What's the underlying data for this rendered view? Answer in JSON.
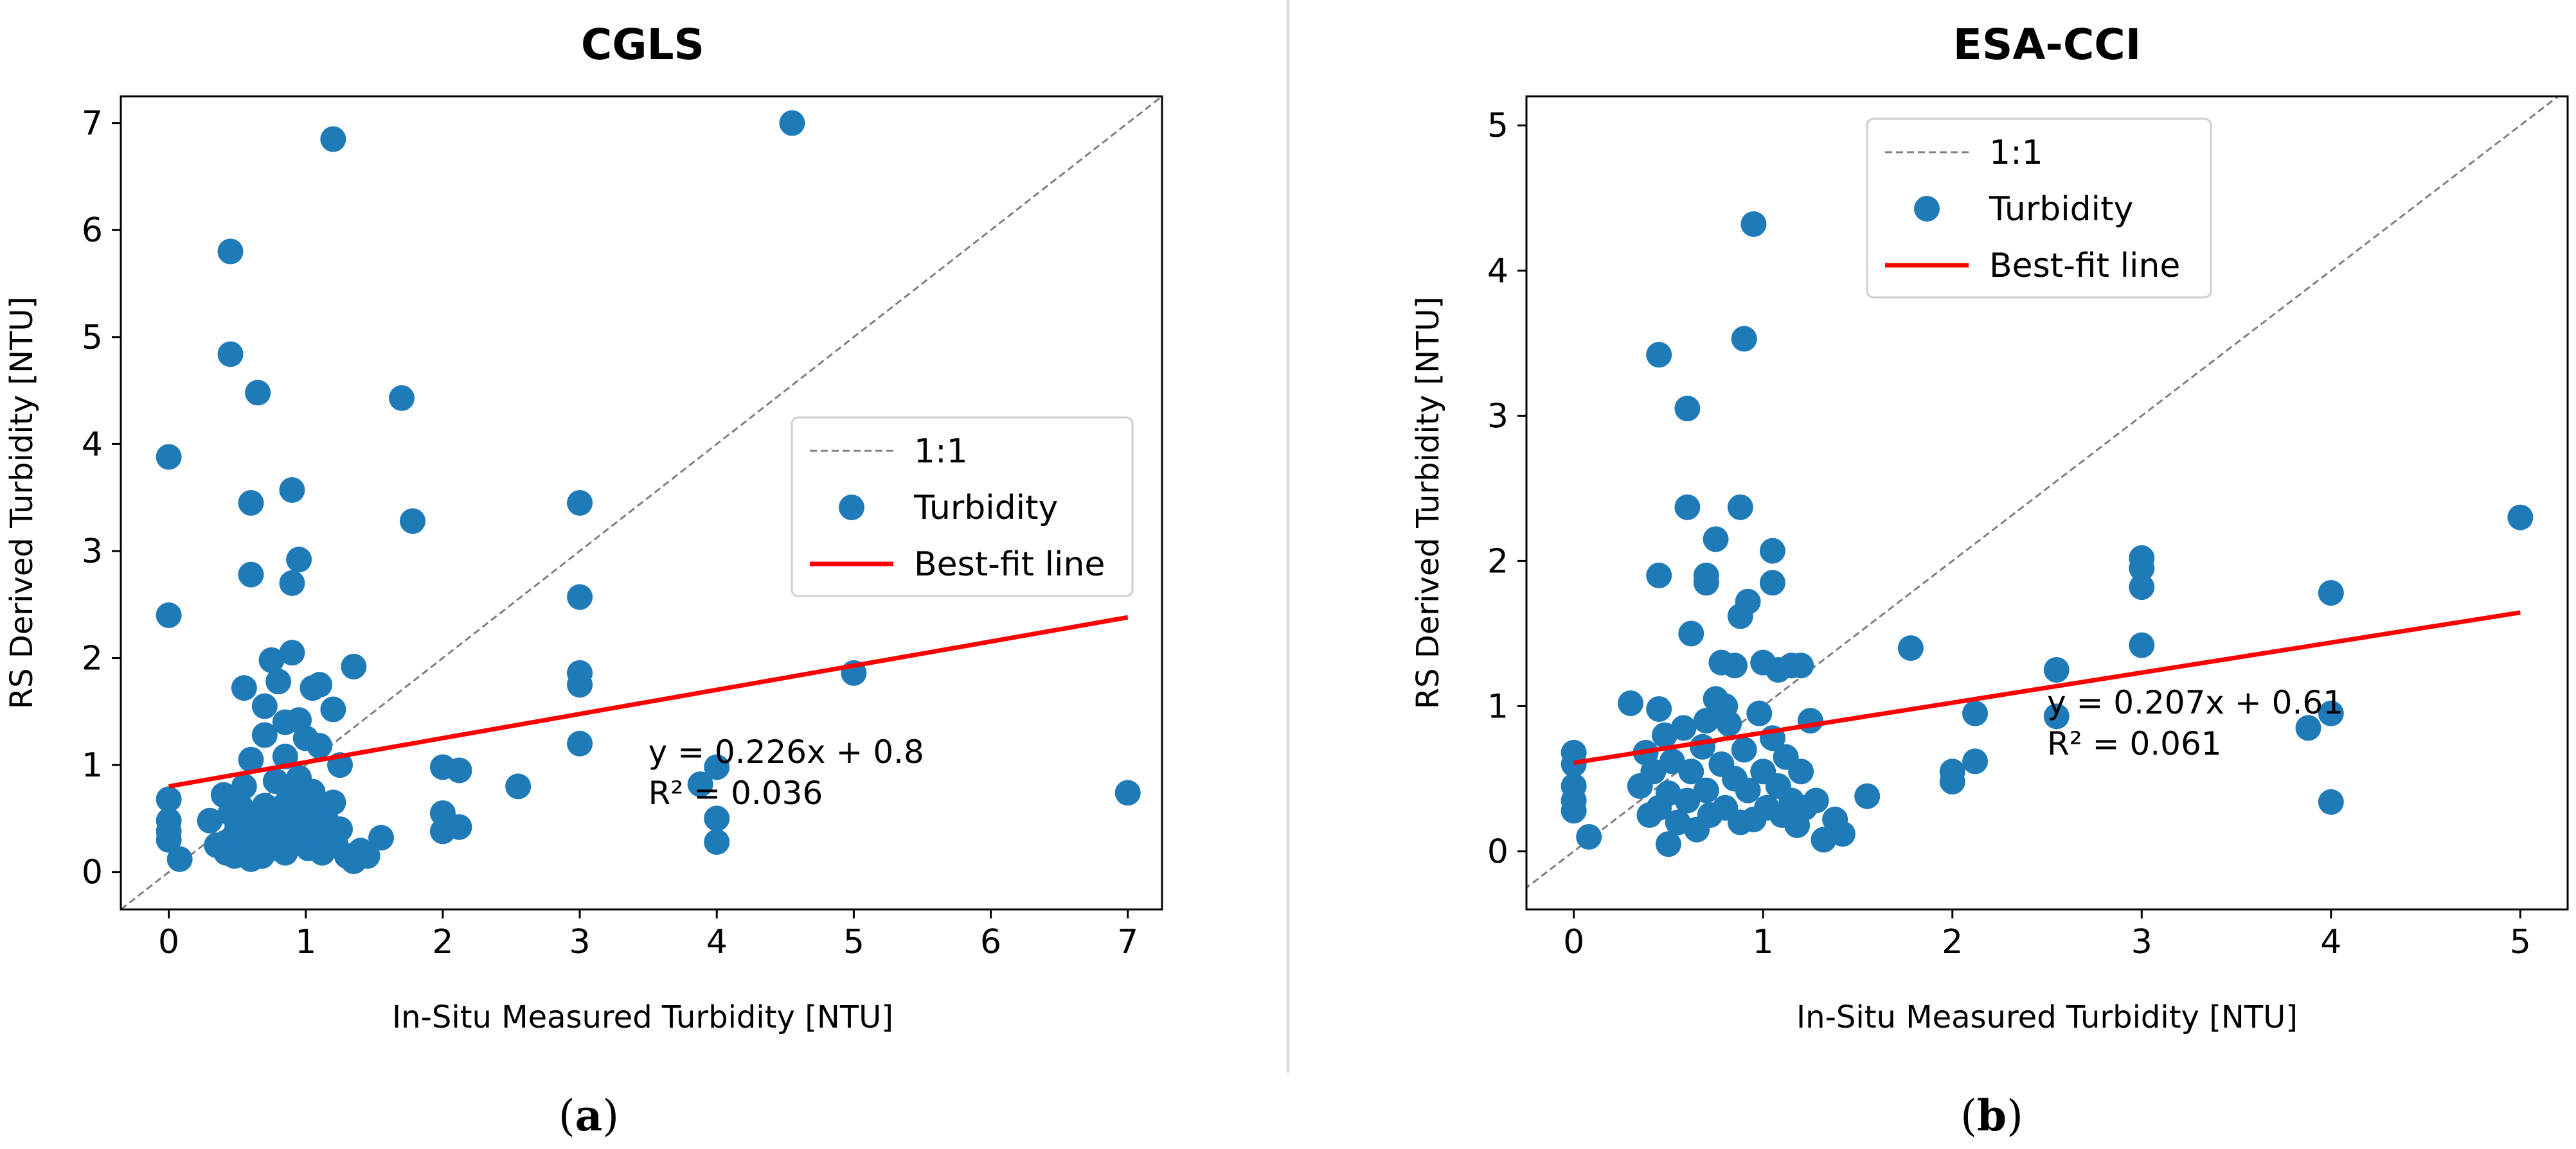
{
  "chart_data": [
    {
      "type": "scatter",
      "panel": "a",
      "caption_letter": "a",
      "title": "CGLS",
      "xlabel": "In-Situ Measured Turbidity [NTU]",
      "ylabel": "RS Derived Turbidity [NTU]",
      "xlim": [
        -0.35,
        7.25
      ],
      "ylim": [
        -0.35,
        7.25
      ],
      "xticks": [
        0,
        1,
        2,
        3,
        4,
        5,
        6,
        7
      ],
      "yticks": [
        0,
        1,
        2,
        3,
        4,
        5,
        6,
        7
      ],
      "grid": false,
      "legend_position": "center-right",
      "series": [
        {
          "name": "1:1",
          "kind": "line",
          "style": "dashed",
          "color": "#808080",
          "x": [
            -0.35,
            7.25
          ],
          "y": [
            -0.35,
            7.25
          ]
        },
        {
          "name": "Turbidity",
          "kind": "scatter",
          "color": "#1f7ab8",
          "points": [
            [
              0,
              3.88
            ],
            [
              0,
              2.4
            ],
            [
              0,
              0.68
            ],
            [
              0,
              0.48
            ],
            [
              0,
              0.38
            ],
            [
              0,
              0.3
            ],
            [
              0.08,
              0.12
            ],
            [
              0.3,
              0.48
            ],
            [
              0.35,
              0.25
            ],
            [
              0.4,
              0.72
            ],
            [
              0.42,
              0.18
            ],
            [
              0.45,
              0.3
            ],
            [
              0.45,
              0.55
            ],
            [
              0.48,
              0.15
            ],
            [
              0.5,
              0.42
            ],
            [
              0.52,
              0.62
            ],
            [
              0.55,
              0.2
            ],
            [
              0.55,
              0.8
            ],
            [
              0.58,
              0.35
            ],
            [
              0.6,
              0.12
            ],
            [
              0.62,
              0.5
            ],
            [
              0.65,
              0.3
            ],
            [
              0.68,
              0.15
            ],
            [
              0.7,
              0.62
            ],
            [
              0.72,
              0.45
            ],
            [
              0.75,
              0.22
            ],
            [
              0.78,
              0.85
            ],
            [
              0.8,
              0.35
            ],
            [
              0.82,
              0.6
            ],
            [
              0.85,
              0.18
            ],
            [
              0.88,
              0.72
            ],
            [
              0.9,
              0.5
            ],
            [
              0.92,
              0.28
            ],
            [
              0.95,
              0.88
            ],
            [
              0.98,
              0.42
            ],
            [
              1.0,
              0.6
            ],
            [
              1.02,
              0.22
            ],
            [
              1.05,
              0.75
            ],
            [
              1.08,
              0.35
            ],
            [
              1.1,
              0.55
            ],
            [
              1.12,
              0.18
            ],
            [
              1.15,
              0.48
            ],
            [
              1.18,
              0.3
            ],
            [
              1.2,
              0.65
            ],
            [
              1.22,
              0.25
            ],
            [
              1.25,
              0.4
            ],
            [
              1.3,
              0.15
            ],
            [
              1.35,
              0.1
            ],
            [
              1.4,
              0.2
            ],
            [
              1.45,
              0.15
            ],
            [
              1.55,
              0.32
            ],
            [
              0.45,
              5.8
            ],
            [
              0.45,
              4.84
            ],
            [
              0.65,
              4.48
            ],
            [
              1.2,
              6.85
            ],
            [
              0.6,
              3.45
            ],
            [
              0.6,
              2.78
            ],
            [
              0.9,
              3.57
            ],
            [
              0.9,
              2.7
            ],
            [
              0.95,
              2.92
            ],
            [
              0.55,
              1.72
            ],
            [
              0.7,
              1.55
            ],
            [
              0.75,
              1.98
            ],
            [
              0.8,
              1.78
            ],
            [
              0.85,
              1.4
            ],
            [
              0.9,
              2.05
            ],
            [
              0.95,
              1.42
            ],
            [
              1.0,
              1.25
            ],
            [
              1.05,
              1.72
            ],
            [
              1.1,
              1.18
            ],
            [
              1.2,
              1.52
            ],
            [
              1.35,
              1.92
            ],
            [
              0.7,
              1.28
            ],
            [
              0.85,
              1.08
            ],
            [
              0.6,
              1.05
            ],
            [
              1.1,
              1.75
            ],
            [
              1.25,
              1.0
            ],
            [
              1.7,
              4.43
            ],
            [
              1.78,
              3.28
            ],
            [
              2.0,
              0.98
            ],
            [
              2.0,
              0.55
            ],
            [
              2.0,
              0.38
            ],
            [
              2.12,
              0.95
            ],
            [
              2.12,
              0.42
            ],
            [
              2.55,
              0.8
            ],
            [
              3.0,
              3.45
            ],
            [
              3.0,
              2.57
            ],
            [
              3.0,
              1.86
            ],
            [
              3.0,
              1.75
            ],
            [
              3.0,
              1.2
            ],
            [
              3.88,
              0.82
            ],
            [
              4.0,
              0.98
            ],
            [
              4.0,
              0.5
            ],
            [
              4.0,
              0.28
            ],
            [
              4.55,
              7.0
            ],
            [
              5.0,
              1.86
            ],
            [
              7.0,
              0.74
            ]
          ]
        },
        {
          "name": "Best-fit line",
          "kind": "line",
          "style": "solid",
          "color": "#ff0000",
          "x": [
            0,
            7
          ],
          "y": [
            0.8,
            2.38
          ]
        }
      ],
      "annotations": {
        "equation": "y = 0.226x + 0.8",
        "r2": "R² = 0.036",
        "anchor": [
          3.5,
          1.02
        ]
      }
    },
    {
      "type": "scatter",
      "panel": "b",
      "caption_letter": "b",
      "title": "ESA-CCI",
      "xlabel": "In-Situ Measured Turbidity [NTU]",
      "ylabel": "RS Derived Turbidity [NTU]",
      "xlim": [
        -0.25,
        5.25
      ],
      "ylim": [
        -0.4,
        5.2
      ],
      "xticks": [
        0,
        1,
        2,
        3,
        4,
        5
      ],
      "yticks": [
        0,
        1,
        2,
        3,
        4,
        5
      ],
      "grid": false,
      "legend_position": "upper-center",
      "series": [
        {
          "name": "1:1",
          "kind": "line",
          "style": "dashed",
          "color": "#808080",
          "x": [
            -0.4,
            5.25
          ],
          "y": [
            -0.4,
            5.25
          ]
        },
        {
          "name": "Turbidity",
          "kind": "scatter",
          "color": "#1f7ab8",
          "points": [
            [
              0,
              0.68
            ],
            [
              0,
              0.6
            ],
            [
              0,
              0.45
            ],
            [
              0,
              0.35
            ],
            [
              0,
              0.28
            ],
            [
              0.08,
              0.1
            ],
            [
              0.3,
              1.02
            ],
            [
              0.35,
              0.45
            ],
            [
              0.38,
              0.68
            ],
            [
              0.4,
              0.25
            ],
            [
              0.42,
              0.55
            ],
            [
              0.45,
              0.98
            ],
            [
              0.45,
              0.3
            ],
            [
              0.48,
              0.8
            ],
            [
              0.5,
              0.05
            ],
            [
              0.5,
              0.4
            ],
            [
              0.52,
              0.62
            ],
            [
              0.55,
              0.2
            ],
            [
              0.58,
              0.85
            ],
            [
              0.6,
              0.35
            ],
            [
              0.62,
              0.55
            ],
            [
              0.65,
              0.15
            ],
            [
              0.68,
              0.72
            ],
            [
              0.7,
              0.42
            ],
            [
              0.72,
              0.25
            ],
            [
              0.75,
              1.05
            ],
            [
              0.78,
              0.6
            ],
            [
              0.8,
              0.3
            ],
            [
              0.82,
              0.88
            ],
            [
              0.85,
              0.5
            ],
            [
              0.88,
              0.2
            ],
            [
              0.9,
              0.7
            ],
            [
              0.92,
              0.42
            ],
            [
              0.95,
              0.22
            ],
            [
              0.98,
              0.95
            ],
            [
              1.0,
              0.55
            ],
            [
              1.02,
              0.3
            ],
            [
              1.05,
              0.78
            ],
            [
              1.08,
              0.45
            ],
            [
              1.1,
              0.25
            ],
            [
              1.12,
              0.65
            ],
            [
              1.15,
              0.35
            ],
            [
              1.18,
              0.18
            ],
            [
              1.2,
              0.55
            ],
            [
              1.22,
              0.3
            ],
            [
              1.25,
              0.9
            ],
            [
              1.28,
              0.35
            ],
            [
              1.32,
              0.08
            ],
            [
              1.38,
              0.22
            ],
            [
              1.42,
              0.12
            ],
            [
              1.55,
              0.38
            ],
            [
              0.45,
              3.42
            ],
            [
              0.45,
              1.9
            ],
            [
              0.6,
              3.05
            ],
            [
              0.6,
              2.37
            ],
            [
              0.62,
              1.5
            ],
            [
              0.7,
              1.9
            ],
            [
              0.7,
              1.85
            ],
            [
              0.75,
              2.15
            ],
            [
              0.78,
              1.3
            ],
            [
              0.85,
              1.28
            ],
            [
              0.88,
              2.37
            ],
            [
              0.88,
              1.62
            ],
            [
              0.9,
              3.53
            ],
            [
              0.92,
              1.72
            ],
            [
              0.95,
              4.32
            ],
            [
              1.0,
              1.3
            ],
            [
              1.05,
              2.07
            ],
            [
              1.05,
              1.85
            ],
            [
              1.08,
              1.25
            ],
            [
              1.15,
              1.28
            ],
            [
              1.2,
              1.28
            ],
            [
              0.8,
              1.0
            ],
            [
              0.7,
              0.9
            ],
            [
              1.78,
              1.4
            ],
            [
              2.0,
              0.55
            ],
            [
              2.0,
              0.48
            ],
            [
              2.12,
              0.95
            ],
            [
              2.12,
              0.62
            ],
            [
              2.55,
              1.25
            ],
            [
              2.55,
              0.93
            ],
            [
              3.0,
              2.02
            ],
            [
              3.0,
              1.95
            ],
            [
              3.0,
              1.82
            ],
            [
              3.0,
              1.42
            ],
            [
              3.88,
              0.85
            ],
            [
              4.0,
              1.78
            ],
            [
              4.0,
              0.95
            ],
            [
              4.0,
              0.34
            ],
            [
              5.0,
              2.3
            ]
          ]
        },
        {
          "name": "Best-fit line",
          "kind": "line",
          "style": "solid",
          "color": "#ff0000",
          "x": [
            0,
            5
          ],
          "y": [
            0.61,
            1.645
          ]
        }
      ],
      "annotations": {
        "equation": "y = 0.207x + 0.61",
        "r2": "R² = 0.061",
        "anchor": [
          2.5,
          0.95
        ]
      }
    }
  ]
}
